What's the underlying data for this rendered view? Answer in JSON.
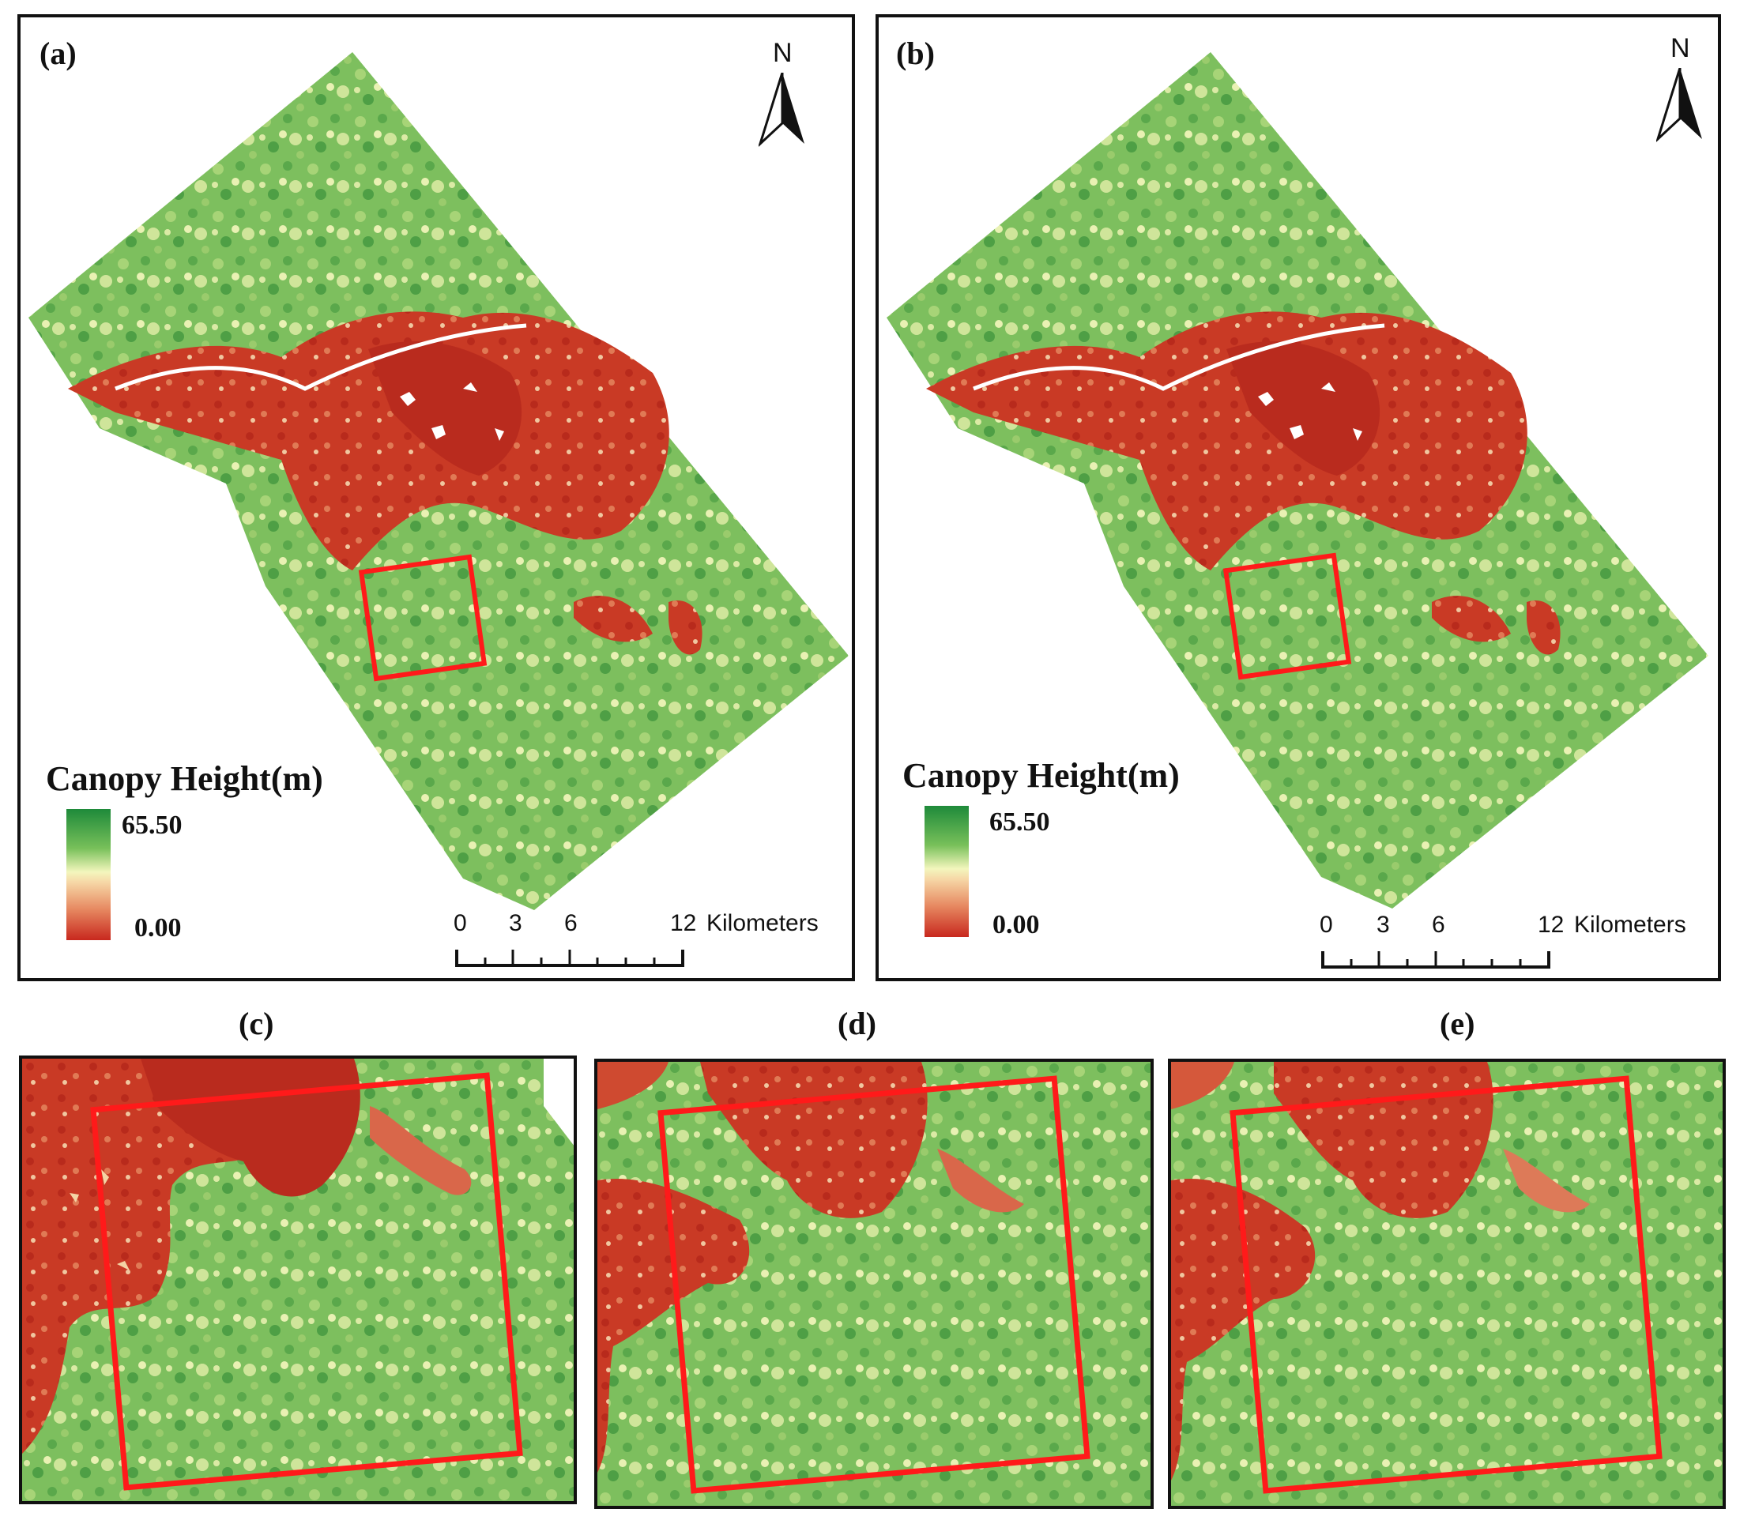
{
  "panels": {
    "a": {
      "label": "(a)"
    },
    "b": {
      "label": "(b)"
    },
    "c": {
      "label": "(c)"
    },
    "d": {
      "label": "(d)"
    },
    "e": {
      "label": "(e)"
    }
  },
  "legend": {
    "title": "Canopy Height(m)",
    "max": "65.50",
    "min": "0.00"
  },
  "north_arrow": {
    "letter": "N"
  },
  "scale_bar": {
    "ticks": [
      "0",
      "3",
      "6",
      "12"
    ],
    "unit": "Kilometers"
  },
  "colors": {
    "high": "#1e8a3a",
    "mid": "#f3f6bd",
    "low": "#c8281e",
    "highlight_box": "#ff1a1a"
  }
}
